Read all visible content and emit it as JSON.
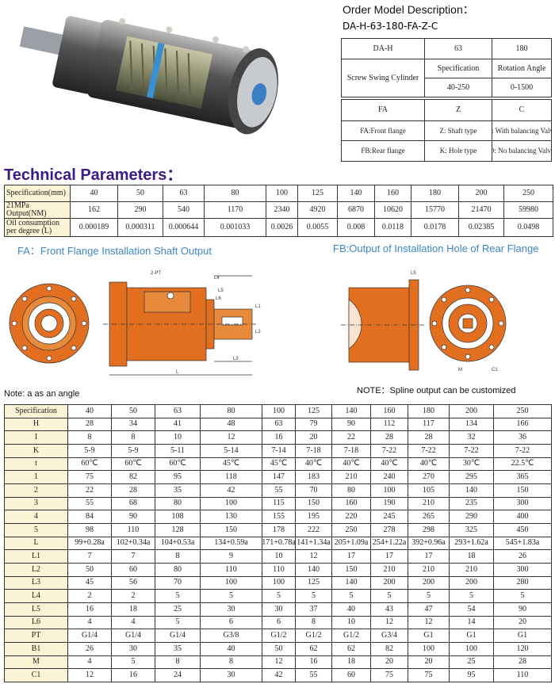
{
  "order": {
    "title": "Order Model Description：",
    "model": "DA-H-63-180-FA-Z-C",
    "codes": [
      "DA-H",
      "63",
      "180"
    ],
    "name": "Screw Swing Cylinder",
    "spec_label": "Specification",
    "spec_range": "40-250",
    "angle_label": "Rotation Angle",
    "angle_range": "0-1500",
    "options": [
      [
        "FA",
        "Z",
        "C"
      ],
      [
        "FA:Front flange",
        "Z: Shaft type",
        "C: With balancing Valve"
      ],
      [
        "FB:Rear flange",
        "K: Hole type",
        "O: No balancing Valve"
      ]
    ]
  },
  "technical": {
    "title": "Technical Parameters：",
    "rows": [
      [
        "Specification(mm)",
        "40",
        "50",
        "63",
        "80",
        "100",
        "125",
        "140",
        "160",
        "180",
        "200",
        "250"
      ],
      [
        "21MPa Output(NM)",
        "162",
        "290",
        "540",
        "1170",
        "2340",
        "4920",
        "6870",
        "10620",
        "15770",
        "21470",
        "59980"
      ],
      [
        "Oil consumption per degree (L)",
        "0.000189",
        "0.000311",
        "0.000644",
        "0.001033",
        "0.0026",
        "0.0055",
        "0.008",
        "0.0118",
        "0.0178",
        "0.02385",
        "0.0498"
      ]
    ]
  },
  "drawings": {
    "fa_title": "FA：Front Flange Installation Shaft Output",
    "fb_title": "FB:Output of Installation Hole of Rear Flange",
    "fa_labels": [
      "2-PT",
      "L4",
      "L5",
      "L6",
      "L1",
      "L2",
      "L3",
      "L"
    ],
    "fb_labels": [
      "L5",
      "M",
      "C1"
    ]
  },
  "notes": {
    "left": "Note: a as an angle",
    "right": "NOTE：Spline output can be customized"
  },
  "dimensions": {
    "rows": [
      [
        "Specification",
        "40",
        "50",
        "63",
        "80",
        "100",
        "125",
        "140",
        "160",
        "180",
        "200",
        "250"
      ],
      [
        "H",
        "28",
        "34",
        "41",
        "48",
        "63",
        "79",
        "90",
        "112",
        "117",
        "134",
        "166"
      ],
      [
        "I",
        "8",
        "8",
        "10",
        "12",
        "16",
        "20",
        "22",
        "28",
        "28",
        "32",
        "36"
      ],
      [
        "K",
        "5-9",
        "5-9",
        "5-11",
        "5-14",
        "7-14",
        "7-18",
        "7-18",
        "7-22",
        "7-22",
        "7-22",
        "7-22"
      ],
      [
        "t",
        "60℃",
        "60℃",
        "60℃",
        "45℃",
        "45℃",
        "40℃",
        "40℃",
        "40℃",
        "40℃",
        "30℃",
        "22.5℃"
      ],
      [
        "1",
        "75",
        "82",
        "95",
        "118",
        "147",
        "183",
        "210",
        "240",
        "270",
        "295",
        "365"
      ],
      [
        "2",
        "22",
        "28",
        "35",
        "42",
        "55",
        "70",
        "80",
        "100",
        "105",
        "140",
        "150"
      ],
      [
        "3",
        "55",
        "68",
        "80",
        "100",
        "115",
        "150",
        "160",
        "190",
        "210",
        "235",
        "300"
      ],
      [
        "4",
        "84",
        "90",
        "108",
        "130",
        "155",
        "195",
        "220",
        "245",
        "265",
        "290",
        "400"
      ],
      [
        "5",
        "98",
        "110",
        "128",
        "150",
        "178",
        "222",
        "250",
        "278",
        "298",
        "325",
        "450"
      ],
      [
        "L",
        "99+0.28a",
        "102+0.34a",
        "104+0.53a",
        "134+0.59a",
        "171+0.78a",
        "141+1.34a",
        "205+1.09a",
        "254+1.22a",
        "392+0.96a",
        "293+1.62a",
        "545+1.83a"
      ],
      [
        "L1",
        "7",
        "7",
        "8",
        "9",
        "10",
        "12",
        "17",
        "17",
        "17",
        "18",
        "26"
      ],
      [
        "L2",
        "50",
        "60",
        "80",
        "110",
        "110",
        "140",
        "150",
        "210",
        "210",
        "210",
        "300"
      ],
      [
        "L3",
        "45",
        "56",
        "70",
        "100",
        "100",
        "125",
        "140",
        "200",
        "200",
        "200",
        "280"
      ],
      [
        "L4",
        "2",
        "2",
        "5",
        "5",
        "5",
        "5",
        "5",
        "5",
        "5",
        "5",
        "5"
      ],
      [
        "L5",
        "16",
        "18",
        "25",
        "30",
        "30",
        "37",
        "40",
        "43",
        "47",
        "54",
        "90"
      ],
      [
        "L6",
        "4",
        "4",
        "5",
        "6",
        "6",
        "8",
        "10",
        "12",
        "12",
        "14",
        "20"
      ],
      [
        "PT",
        "G1/4",
        "G1/4",
        "G1/4",
        "G3/8",
        "G1/2",
        "G1/2",
        "G1/2",
        "G3/4",
        "G1",
        "G1",
        "G1"
      ],
      [
        "B1",
        "26",
        "30",
        "35",
        "40",
        "50",
        "62",
        "62",
        "82",
        "100",
        "100",
        "120"
      ],
      [
        "M",
        "4",
        "5",
        "8",
        "8",
        "12",
        "16",
        "18",
        "20",
        "20",
        "25",
        "28"
      ],
      [
        "C1",
        "12",
        "16",
        "24",
        "30",
        "42",
        "55",
        "60",
        "75",
        "75",
        "95",
        "110"
      ]
    ]
  }
}
